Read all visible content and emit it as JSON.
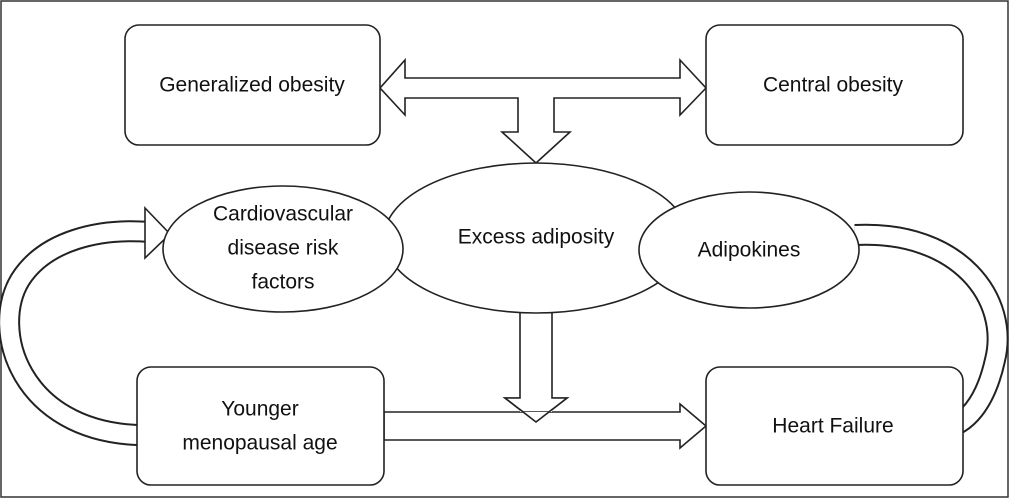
{
  "nodes": [
    {
      "lines": [
        "Generalized obesity"
      ]
    },
    {
      "lines": [
        "Central obesity"
      ]
    },
    {
      "lines": [
        "Cardiovascular",
        "disease risk",
        "factors"
      ]
    },
    {
      "lines": [
        "Excess adiposity"
      ]
    },
    {
      "lines": [
        "Adipokines"
      ]
    },
    {
      "lines": [
        "Younger",
        "menopausal age"
      ]
    },
    {
      "lines": [
        "Heart Failure"
      ]
    }
  ]
}
